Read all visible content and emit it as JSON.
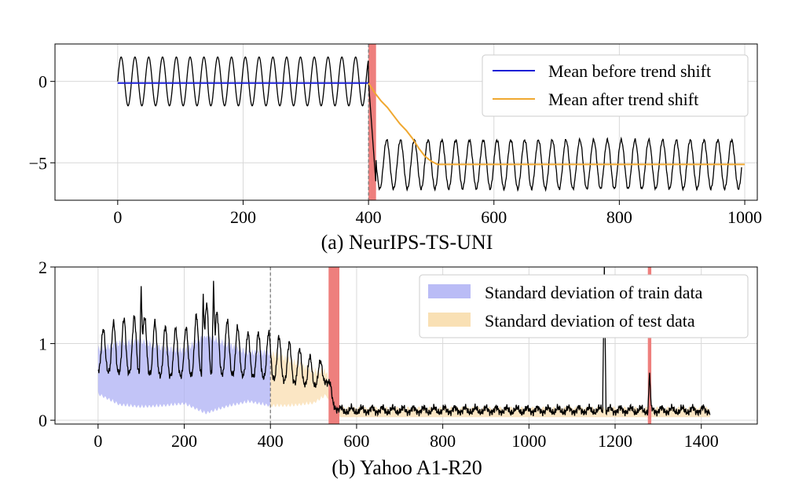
{
  "chart_data": [
    {
      "type": "line",
      "caption": "(a) NeurIPS-TS-UNI",
      "xlim": [
        -100,
        1020
      ],
      "ylim": [
        -7.3,
        2.3
      ],
      "xticks": [
        0,
        200,
        400,
        600,
        800,
        1000
      ],
      "yticks": [
        0,
        -5
      ],
      "ytick_labels": [
        "0",
        "−5"
      ],
      "grid": true,
      "legend_position": "top-right",
      "signal": {
        "color": "#000000",
        "x_start": 0,
        "x_end": 995,
        "period": 22,
        "pre_shift": {
          "x_end": 400,
          "mean": 0,
          "amplitude": 1.5
        },
        "post_shift": {
          "x_start": 400,
          "mean": -5.1,
          "amplitude": 1.5,
          "transition_end_x": 412,
          "transition_start_value": 0.0,
          "transition_min": -6.4
        }
      },
      "series": [
        {
          "name": "Mean before trend shift",
          "color": "#1a1fd6",
          "x": [
            0,
            400
          ],
          "y": [
            -0.1,
            -0.1
          ]
        },
        {
          "name": "Mean after trend shift",
          "color": "#f0a830",
          "x": [
            400,
            410,
            420,
            430,
            440,
            450,
            460,
            470,
            480,
            490,
            500,
            510,
            520,
            1000
          ],
          "y": [
            -0.1,
            -0.7,
            -1.2,
            -1.6,
            -2.1,
            -2.6,
            -3.0,
            -3.5,
            -4.1,
            -4.6,
            -4.9,
            -5.1,
            -5.1,
            -5.1
          ]
        }
      ],
      "vline": {
        "x": 400,
        "style": "dashed",
        "color": "#777777"
      },
      "red_bands": [
        {
          "x_start": 400,
          "x_end": 412
        }
      ],
      "red_color": "#ee7f7d"
    },
    {
      "type": "line",
      "caption": "(b) Yahoo A1-R20",
      "xlim": [
        -100,
        1530
      ],
      "ylim": [
        -0.05,
        2.0
      ],
      "xticks": [
        0,
        200,
        400,
        600,
        800,
        1000,
        1200,
        1400
      ],
      "yticks": [
        0,
        1,
        2
      ],
      "ytick_labels": [
        "0",
        "1",
        "2"
      ],
      "grid": true,
      "legend_position": "top-right",
      "signal": {
        "color": "#000000",
        "x_end": 1420,
        "period": 24,
        "anchors_x": [
          0,
          50,
          100,
          150,
          200,
          250,
          300,
          350,
          400,
          450,
          500,
          530,
          545,
          560,
          600,
          800,
          1000,
          1200,
          1420
        ],
        "base_y": [
          0.65,
          0.62,
          0.62,
          0.58,
          0.58,
          0.62,
          0.6,
          0.58,
          0.55,
          0.5,
          0.45,
          0.5,
          0.18,
          0.1,
          0.1,
          0.1,
          0.1,
          0.1,
          0.1
        ],
        "amp_y": [
          0.5,
          0.7,
          0.75,
          0.65,
          0.6,
          0.9,
          0.7,
          0.55,
          0.6,
          0.5,
          0.35,
          0.25,
          0.12,
          0.07,
          0.07,
          0.07,
          0.07,
          0.07,
          0.07
        ],
        "spikes": [
          {
            "x": 100,
            "y": 1.75
          },
          {
            "x": 244,
            "y": 1.65
          },
          {
            "x": 268,
            "y": 1.82
          },
          {
            "x": 1175,
            "y": 2.0
          },
          {
            "x": 1280,
            "y": 0.62
          }
        ]
      },
      "bands": [
        {
          "name": "Standard deviation of train data",
          "color": "#aeb0f4",
          "opacity": 0.75,
          "x_start": 0,
          "x_end": 400
        },
        {
          "name": "Standard deviation of test data",
          "color": "#f9deb0",
          "opacity": 0.75,
          "x_start": 400,
          "x_end": 1420
        }
      ],
      "vline": {
        "x": 400,
        "style": "dashed",
        "color": "#777777"
      },
      "red_bands": [
        {
          "x_start": 535,
          "x_end": 560
        },
        {
          "x_start": 1276,
          "x_end": 1284
        }
      ],
      "red_color": "#ee7f7d"
    }
  ]
}
